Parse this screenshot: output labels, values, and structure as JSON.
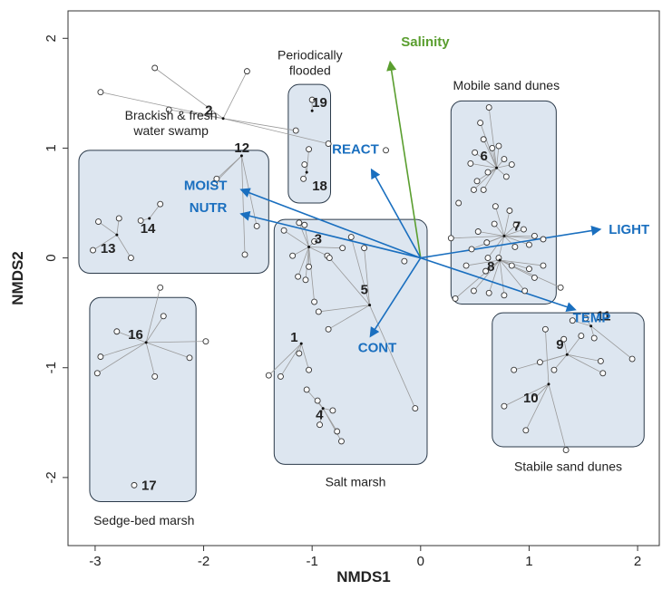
{
  "chart_data": {
    "type": "scatter",
    "title": "",
    "xlabel": "NMDS1",
    "ylabel": "NMDS2",
    "xlim": [
      -3.25,
      2.2
    ],
    "ylim": [
      -2.62,
      2.25
    ],
    "x_ticks": [
      "-3",
      "-2",
      "-1",
      "0",
      "1",
      "2"
    ],
    "y_ticks": [
      "-2",
      "-1",
      "0",
      "1",
      "2"
    ],
    "x_tick_values": [
      -3,
      -2,
      -1,
      0,
      1,
      2
    ],
    "y_tick_values": [
      -2,
      -1,
      0,
      1,
      2
    ],
    "grid": false,
    "colors": {
      "box_fill": "#dde6f0",
      "box_stroke": "#2b3a4a",
      "vector": "#1a6fbf",
      "salinity": "#5a9e2f",
      "spider_line": "#9a9a9a",
      "point_stroke": "#333333"
    },
    "groups": [
      {
        "label": "Brackish & fresh\nwater swamp",
        "box": [
          -3.15,
          -1.4,
          -0.14,
          0.98
        ]
      },
      {
        "label": "Periodically\nflooded",
        "box": [
          -1.22,
          -0.83,
          0.5,
          1.58
        ]
      },
      {
        "label": "Mobile sand dunes",
        "box": [
          0.28,
          1.25,
          -0.42,
          1.43
        ]
      },
      {
        "label": "Salt marsh",
        "box": [
          -1.35,
          0.06,
          -1.88,
          0.35
        ]
      },
      {
        "label": "Sedge-bed marsh",
        "box": [
          -3.05,
          -2.07,
          -2.22,
          -0.36
        ]
      },
      {
        "label": "Stabile sand dunes",
        "box": [
          0.66,
          2.06,
          -1.72,
          -0.5
        ]
      }
    ],
    "vectors": [
      {
        "name": "Salinity",
        "x": -0.28,
        "y": 1.78
      },
      {
        "name": "REACT",
        "x": -0.45,
        "y": 0.8
      },
      {
        "name": "MOIST",
        "x": -1.65,
        "y": 0.62
      },
      {
        "name": "NUTR",
        "x": -1.65,
        "y": 0.4
      },
      {
        "name": "LIGHT",
        "x": 1.65,
        "y": 0.26
      },
      {
        "name": "TEMP",
        "x": 1.42,
        "y": -0.47
      },
      {
        "name": "CONT",
        "x": -0.46,
        "y": -0.71
      }
    ],
    "clusters": [
      {
        "label": "1",
        "centroid": [
          -1.1,
          -0.78
        ],
        "points": [
          [
            -1.4,
            -1.07
          ],
          [
            -1.29,
            -1.08
          ],
          [
            -1.12,
            -0.87
          ],
          [
            -1.03,
            -1.02
          ]
        ]
      },
      {
        "label": "2",
        "centroid": [
          -1.82,
          1.27
        ],
        "points": [
          [
            -2.45,
            1.73
          ],
          [
            -2.95,
            1.51
          ],
          [
            -1.6,
            1.7
          ],
          [
            -2.32,
            1.35
          ],
          [
            -0.85,
            1.04
          ],
          [
            -1.15,
            1.16
          ]
        ]
      },
      {
        "label": "3",
        "centroid": [
          -1.03,
          0.1
        ],
        "points": [
          [
            -1.12,
            0.32
          ],
          [
            -1.07,
            0.3
          ],
          [
            -0.98,
            0.15
          ],
          [
            -1.18,
            0.02
          ],
          [
            -0.72,
            0.09
          ],
          [
            -1.03,
            -0.08
          ],
          [
            -1.06,
            -0.2
          ],
          [
            -1.13,
            -0.17
          ],
          [
            -0.98,
            -0.4
          ],
          [
            -1.26,
            0.25
          ],
          [
            -0.86,
            0.02
          ]
        ]
      },
      {
        "label": "4",
        "centroid": [
          -0.9,
          -1.37
        ],
        "points": [
          [
            -0.95,
            -1.3
          ],
          [
            -1.05,
            -1.2
          ],
          [
            -0.81,
            -1.39
          ],
          [
            -0.93,
            -1.52
          ],
          [
            -0.77,
            -1.58
          ],
          [
            -0.73,
            -1.67
          ]
        ]
      },
      {
        "label": "5",
        "centroid": [
          -0.47,
          -0.43
        ],
        "points": [
          [
            -0.85,
            -0.65
          ],
          [
            -0.94,
            -0.49
          ],
          [
            -0.84,
            0.0
          ],
          [
            -0.52,
            0.09
          ],
          [
            -0.05,
            -1.37
          ],
          [
            -0.64,
            0.19
          ]
        ]
      },
      {
        "label": "6",
        "centroid": [
          0.7,
          0.82
        ],
        "points": [
          [
            0.55,
            1.23
          ],
          [
            0.63,
            1.37
          ],
          [
            0.58,
            1.08
          ],
          [
            0.66,
            1.0
          ],
          [
            0.72,
            1.02
          ],
          [
            0.5,
            0.96
          ],
          [
            0.46,
            0.86
          ],
          [
            0.62,
            0.78
          ],
          [
            0.77,
            0.9
          ],
          [
            0.84,
            0.85
          ],
          [
            0.52,
            0.7
          ],
          [
            0.79,
            0.74
          ],
          [
            0.49,
            0.62
          ],
          [
            0.58,
            0.62
          ]
        ]
      },
      {
        "label": "7",
        "centroid": [
          0.77,
          0.2
        ],
        "points": [
          [
            0.69,
            0.47
          ],
          [
            0.82,
            0.43
          ],
          [
            0.88,
            0.3
          ],
          [
            0.68,
            0.31
          ],
          [
            0.53,
            0.24
          ],
          [
            0.95,
            0.26
          ],
          [
            1.05,
            0.2
          ],
          [
            0.61,
            0.14
          ],
          [
            1.0,
            0.12
          ],
          [
            0.87,
            0.1
          ],
          [
            0.47,
            0.08
          ],
          [
            1.13,
            0.17
          ],
          [
            0.28,
            0.18
          ],
          [
            0.72,
            0.0
          ],
          [
            0.62,
            0.0
          ]
        ]
      },
      {
        "label": "8",
        "centroid": [
          0.73,
          -0.02
        ],
        "points": [
          [
            0.42,
            -0.07
          ],
          [
            0.6,
            -0.12
          ],
          [
            0.84,
            -0.07
          ],
          [
            1.0,
            -0.1
          ],
          [
            1.05,
            -0.18
          ],
          [
            0.49,
            -0.3
          ],
          [
            0.63,
            -0.32
          ],
          [
            0.77,
            -0.34
          ],
          [
            0.96,
            -0.3
          ],
          [
            1.13,
            -0.07
          ],
          [
            1.29,
            -0.27
          ],
          [
            0.32,
            -0.37
          ]
        ]
      },
      {
        "label": "9",
        "centroid": [
          1.35,
          -0.88
        ],
        "points": [
          [
            1.32,
            -0.74
          ],
          [
            1.48,
            -0.71
          ],
          [
            1.66,
            -0.94
          ],
          [
            1.68,
            -1.05
          ],
          [
            1.23,
            -1.02
          ],
          [
            1.1,
            -0.95
          ],
          [
            0.86,
            -1.02
          ]
        ]
      },
      {
        "label": "10",
        "centroid": [
          1.18,
          -1.15
        ],
        "points": [
          [
            0.77,
            -1.35
          ],
          [
            0.97,
            -1.57
          ],
          [
            1.34,
            -1.75
          ],
          [
            1.15,
            -0.65
          ],
          [
            1.05,
            -1.28
          ]
        ]
      },
      {
        "label": "11",
        "centroid": [
          1.57,
          -0.62
        ],
        "points": [
          [
            1.52,
            -0.55
          ],
          [
            1.6,
            -0.73
          ],
          [
            1.95,
            -0.92
          ],
          [
            1.4,
            -0.57
          ]
        ]
      },
      {
        "label": "12",
        "centroid": [
          -1.65,
          0.93
        ],
        "points": [
          [
            -1.88,
            0.72
          ],
          [
            -1.9,
            0.68
          ],
          [
            -1.62,
            0.03
          ],
          [
            -1.51,
            0.29
          ]
        ]
      },
      {
        "label": "13",
        "centroid": [
          -2.8,
          0.21
        ],
        "points": [
          [
            -3.02,
            0.07
          ],
          [
            -2.97,
            0.33
          ],
          [
            -2.67,
            0.0
          ],
          [
            -2.78,
            0.36
          ]
        ]
      },
      {
        "label": "14",
        "centroid": [
          -2.5,
          0.36
        ],
        "points": [
          [
            -2.4,
            0.49
          ],
          [
            -2.58,
            0.34
          ]
        ]
      },
      {
        "label": "16",
        "centroid": [
          -2.53,
          -0.77
        ],
        "points": [
          [
            -2.8,
            -0.67
          ],
          [
            -2.95,
            -0.9
          ],
          [
            -2.98,
            -1.05
          ],
          [
            -2.4,
            -0.27
          ],
          [
            -2.37,
            -0.53
          ],
          [
            -1.98,
            -0.76
          ],
          [
            -2.13,
            -0.91
          ],
          [
            -2.45,
            -1.08
          ]
        ]
      },
      {
        "label": "17",
        "centroid": [
          -2.64,
          -2.07
        ],
        "points": []
      },
      {
        "label": "18",
        "centroid": [
          -1.05,
          0.78
        ],
        "points": [
          [
            -1.07,
            0.85
          ],
          [
            -1.03,
            0.99
          ],
          [
            -1.08,
            0.72
          ]
        ]
      },
      {
        "label": "19",
        "centroid": [
          -1.0,
          1.34
        ],
        "points": [
          [
            -1.0,
            1.44
          ]
        ]
      }
    ],
    "unlinked_points": [
      [
        -0.32,
        0.98
      ],
      [
        -2.64,
        -2.07
      ],
      [
        -0.15,
        -0.03
      ],
      [
        0.35,
        0.5
      ]
    ]
  }
}
